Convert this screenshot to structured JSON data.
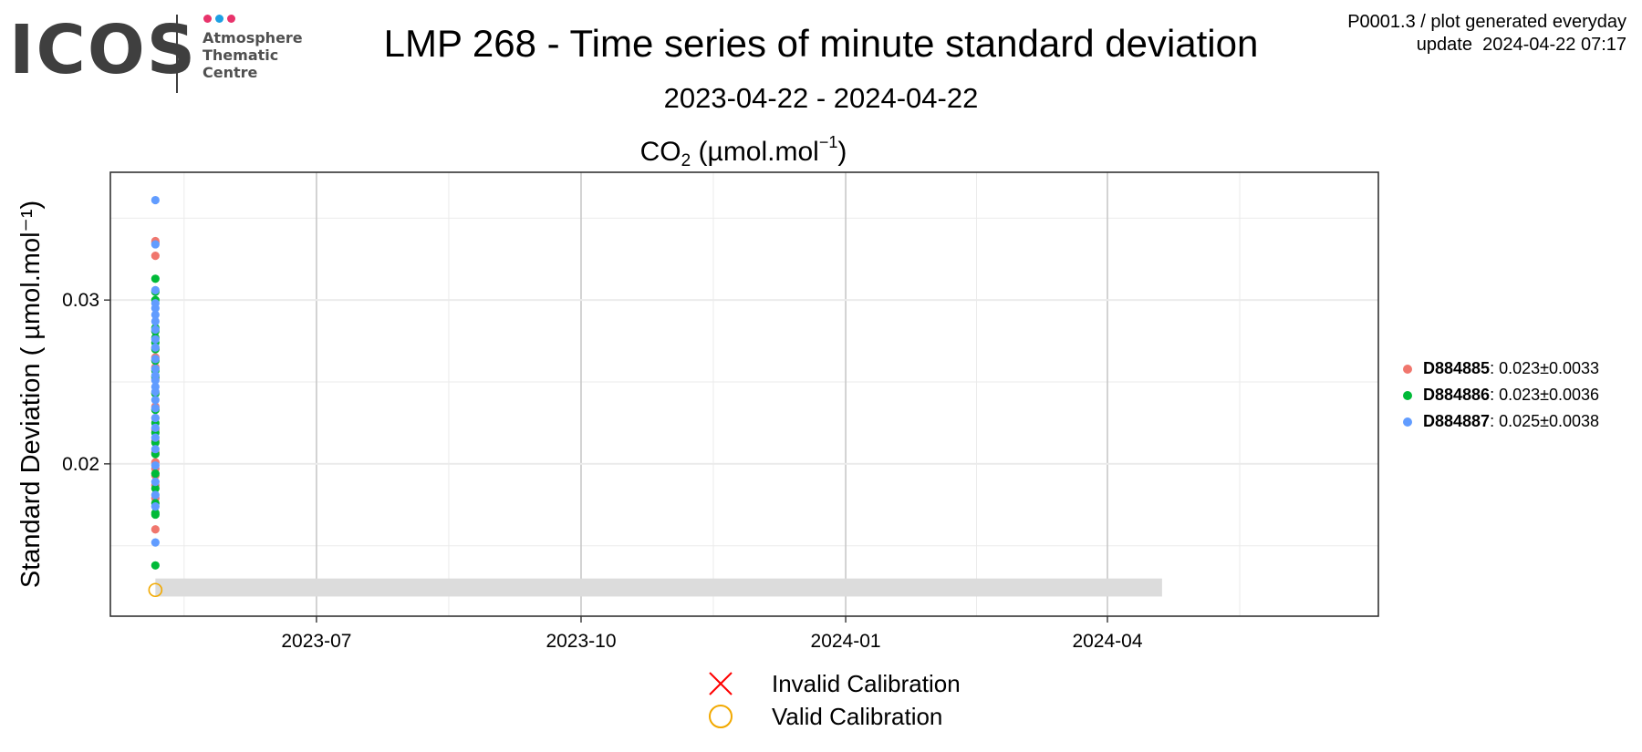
{
  "logo": {
    "wordmark": "ICOS",
    "lines": [
      "Atmosphere",
      "Thematic",
      "Centre"
    ],
    "dot_colors": [
      "#e8336b",
      "#1d9fe3",
      "#e8336b"
    ]
  },
  "meta": {
    "line1": "P0001.3 / plot generated everyday",
    "line2": "update  2024-04-22 07:17"
  },
  "title": "LMP 268 - Time series of minute standard deviation",
  "subtitle": "2023-04-22 - 2024-04-22",
  "plot_title": {
    "species": "CO",
    "species_sub": "2",
    "unit_prefix": " (µmol.mol",
    "unit_sup": "−1",
    "unit_suffix": ")"
  },
  "legend": [
    {
      "name": "D884885",
      "stats": ": 0.023±0.0033",
      "color": "#F0766D"
    },
    {
      "name": "D884886",
      "stats": ": 0.023±0.0036",
      "color": "#00BA38"
    },
    {
      "name": "D884887",
      "stats": ": 0.025±0.0038",
      "color": "#619CFF"
    }
  ],
  "calibration_legend": {
    "invalid": {
      "label": "Invalid Calibration",
      "symbol": "cross",
      "color": "#ff0000"
    },
    "valid": {
      "label": "Valid Calibration",
      "symbol": "circle",
      "color": "#f2a900"
    }
  },
  "chart_data": {
    "type": "scatter",
    "x_type": "date",
    "xlim": [
      "2023-04-22",
      "2024-04-22"
    ],
    "ylim": [
      0.0107,
      0.0378
    ],
    "x_ticks": [
      "2023-07-01",
      "2023-10-01",
      "2024-01-01",
      "2024-04-01"
    ],
    "x_tick_labels": [
      "2023-07",
      "2023-10",
      "2024-01",
      "2024-04"
    ],
    "y_ticks": [
      0.02,
      0.03
    ],
    "y_tick_labels": [
      "0.02",
      "0.03"
    ],
    "ylabel": "Standard Deviation ( µmol.mol⁻¹)",
    "grid": true,
    "legend_position": "right",
    "calibration_band": {
      "x": [
        "2023-05-06",
        "2024-04-20"
      ],
      "y": [
        0.0119,
        0.013
      ]
    },
    "series": [
      {
        "name": "D884885",
        "x": "2023-05-06",
        "values": [
          0.0336,
          0.0335,
          0.0327,
          0.0271,
          0.0265,
          0.0259,
          0.0252,
          0.0243,
          0.0235,
          0.0228,
          0.0221,
          0.0214,
          0.0207,
          0.0201,
          0.0197,
          0.0193,
          0.0187,
          0.0179,
          0.016
        ]
      },
      {
        "name": "D884886",
        "x": "2023-05-06",
        "values": [
          0.0313,
          0.0305,
          0.03,
          0.0283,
          0.0281,
          0.0277,
          0.0274,
          0.027,
          0.0263,
          0.0257,
          0.0253,
          0.0243,
          0.0233,
          0.0225,
          0.0219,
          0.0213,
          0.0206,
          0.0194,
          0.0185,
          0.0176,
          0.017,
          0.0169,
          0.0138
        ]
      },
      {
        "name": "D884887",
        "x": "2023-05-06",
        "values": [
          0.0361,
          0.0334,
          0.0306,
          0.0298,
          0.0295,
          0.0291,
          0.0287,
          0.0282,
          0.0276,
          0.0271,
          0.0264,
          0.0258,
          0.0254,
          0.0251,
          0.0247,
          0.0244,
          0.0239,
          0.0234,
          0.0228,
          0.0222,
          0.0216,
          0.0209,
          0.0199,
          0.0189,
          0.0181,
          0.0174,
          0.0152
        ]
      }
    ],
    "calibrations": [
      {
        "status": "valid",
        "x": "2023-05-06",
        "y": 0.0123
      }
    ]
  }
}
